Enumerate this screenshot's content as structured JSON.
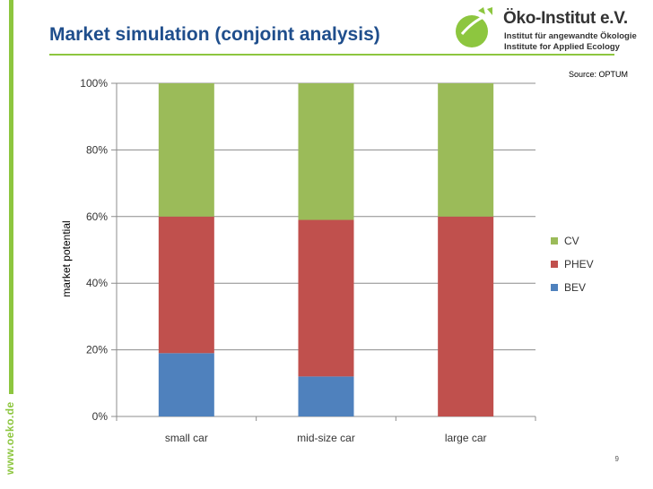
{
  "slide": {
    "title": "Market simulation (conjoint analysis)",
    "source": "Source: OPTUM",
    "page_number": "9",
    "side_text": "www.oeko.de",
    "logo": {
      "name": "Öko-Institut e.V.",
      "line1": "Institut für angewandte Ökologie",
      "line2": "Institute for Applied Ecology"
    }
  },
  "colors": {
    "CV": "#9bbb59",
    "PHEV": "#c0504d",
    "BEV": "#4f81bd",
    "accent": "#8dc63f",
    "title": "#1f4e8c"
  },
  "chart_data": {
    "type": "bar",
    "stacked": true,
    "categories": [
      "small car",
      "mid-size car",
      "large car"
    ],
    "series": [
      {
        "name": "BEV",
        "values": [
          19,
          12,
          0
        ]
      },
      {
        "name": "PHEV",
        "values": [
          41,
          47,
          60
        ]
      },
      {
        "name": "CV",
        "values": [
          40,
          41,
          40
        ]
      }
    ],
    "ylabel": "market potential",
    "ylim": [
      0,
      100
    ],
    "yticks": [
      "0%",
      "20%",
      "40%",
      "60%",
      "80%",
      "100%"
    ],
    "legend_order": [
      "CV",
      "PHEV",
      "BEV"
    ],
    "legend": "right",
    "grid": true
  }
}
